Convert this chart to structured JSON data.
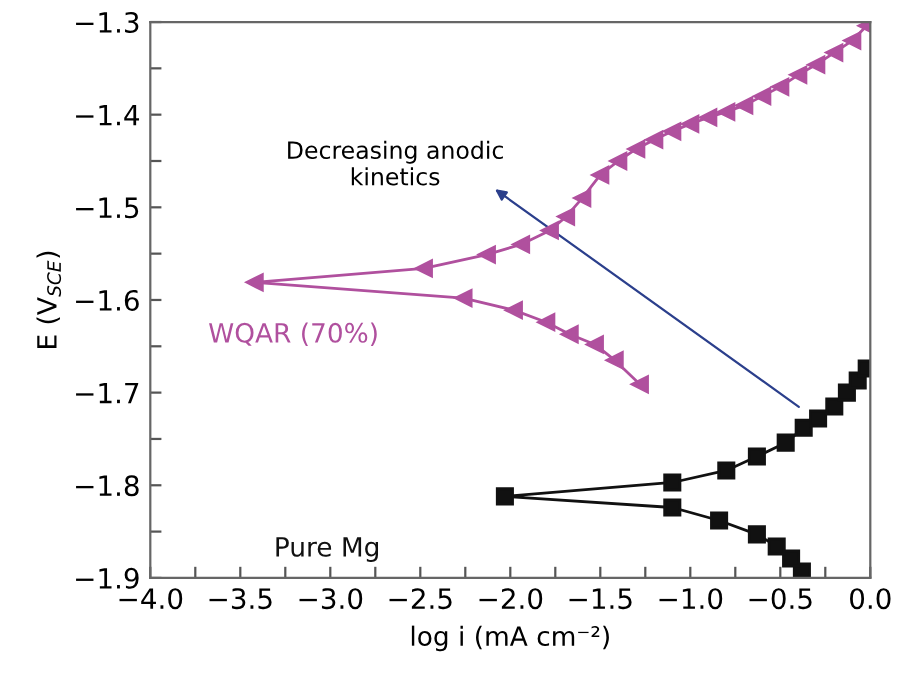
{
  "chart_data": {
    "type": "line",
    "xlabel": "log i (mA cm⁻²)",
    "ylabel": "E (V$_{SCE}$)",
    "xlim": [
      -4.0,
      0.0
    ],
    "ylim": [
      -1.9,
      -1.3
    ],
    "xticks": [
      {
        "value": -4.0,
        "label": "−4.0"
      },
      {
        "value": -3.75,
        "label": null
      },
      {
        "value": -3.5,
        "label": "−3.5"
      },
      {
        "value": -3.25,
        "label": null
      },
      {
        "value": -3.0,
        "label": "−3.0"
      },
      {
        "value": -2.75,
        "label": null
      },
      {
        "value": -2.5,
        "label": "−2.5"
      },
      {
        "value": -2.25,
        "label": null
      },
      {
        "value": -2.0,
        "label": "−2.0"
      },
      {
        "value": -1.75,
        "label": null
      },
      {
        "value": -1.5,
        "label": "−1.5"
      },
      {
        "value": -1.25,
        "label": null
      },
      {
        "value": -1.0,
        "label": "−1.0"
      },
      {
        "value": -0.75,
        "label": null
      },
      {
        "value": -0.5,
        "label": "−0.5"
      },
      {
        "value": -0.25,
        "label": null
      },
      {
        "value": 0.0,
        "label": "0.0"
      }
    ],
    "yticks": [
      {
        "value": -1.9,
        "label": "−1.9"
      },
      {
        "value": -1.85,
        "label": null
      },
      {
        "value": -1.8,
        "label": "−1.8"
      },
      {
        "value": -1.75,
        "label": null
      },
      {
        "value": -1.7,
        "label": "−1.7"
      },
      {
        "value": -1.65,
        "label": null
      },
      {
        "value": -1.6,
        "label": "−1.6"
      },
      {
        "value": -1.55,
        "label": null
      },
      {
        "value": -1.5,
        "label": "−1.5"
      },
      {
        "value": -1.45,
        "label": null
      },
      {
        "value": -1.4,
        "label": "−1.4"
      },
      {
        "value": -1.35,
        "label": null
      },
      {
        "value": -1.3,
        "label": "−1.3"
      }
    ],
    "grid": false,
    "legend": false,
    "line_style": "solid",
    "series": [
      {
        "name": "WQAR (70%)",
        "color": "#b0509e",
        "marker": "triangle",
        "x": [
          -1.28,
          -1.42,
          -1.53,
          -1.67,
          -1.8,
          -1.98,
          -2.26,
          -3.42,
          -2.48,
          -2.13,
          -1.94,
          -1.78,
          -1.69,
          -1.6,
          -1.5,
          -1.4,
          -1.3,
          -1.2,
          -1.1,
          -1.0,
          -0.9,
          -0.8,
          -0.7,
          -0.6,
          -0.5,
          -0.4,
          -0.3,
          -0.2,
          -0.1,
          -0.02
        ],
        "values": [
          -1.691,
          -1.665,
          -1.648,
          -1.637,
          -1.624,
          -1.611,
          -1.598,
          -1.581,
          -1.566,
          -1.551,
          -1.54,
          -1.525,
          -1.51,
          -1.49,
          -1.465,
          -1.45,
          -1.437,
          -1.427,
          -1.418,
          -1.41,
          -1.403,
          -1.397,
          -1.39,
          -1.38,
          -1.37,
          -1.357,
          -1.346,
          -1.333,
          -1.32,
          -1.304
        ]
      },
      {
        "name": "Pure Mg",
        "color": "#111111",
        "marker": "square",
        "x": [
          -0.38,
          -0.44,
          -0.52,
          -0.63,
          -0.84,
          -1.1,
          -2.03,
          -1.1,
          -0.8,
          -0.63,
          -0.47,
          -0.37,
          -0.29,
          -0.2,
          -0.13,
          -0.07,
          -0.02
        ],
        "values": [
          -1.893,
          -1.879,
          -1.866,
          -1.853,
          -1.838,
          -1.824,
          -1.812,
          -1.797,
          -1.784,
          -1.769,
          -1.754,
          -1.738,
          -1.728,
          -1.715,
          -1.7,
          -1.687,
          -1.674
        ]
      }
    ],
    "annotations": [
      "Decreasing anodic\nkinetics"
    ]
  }
}
